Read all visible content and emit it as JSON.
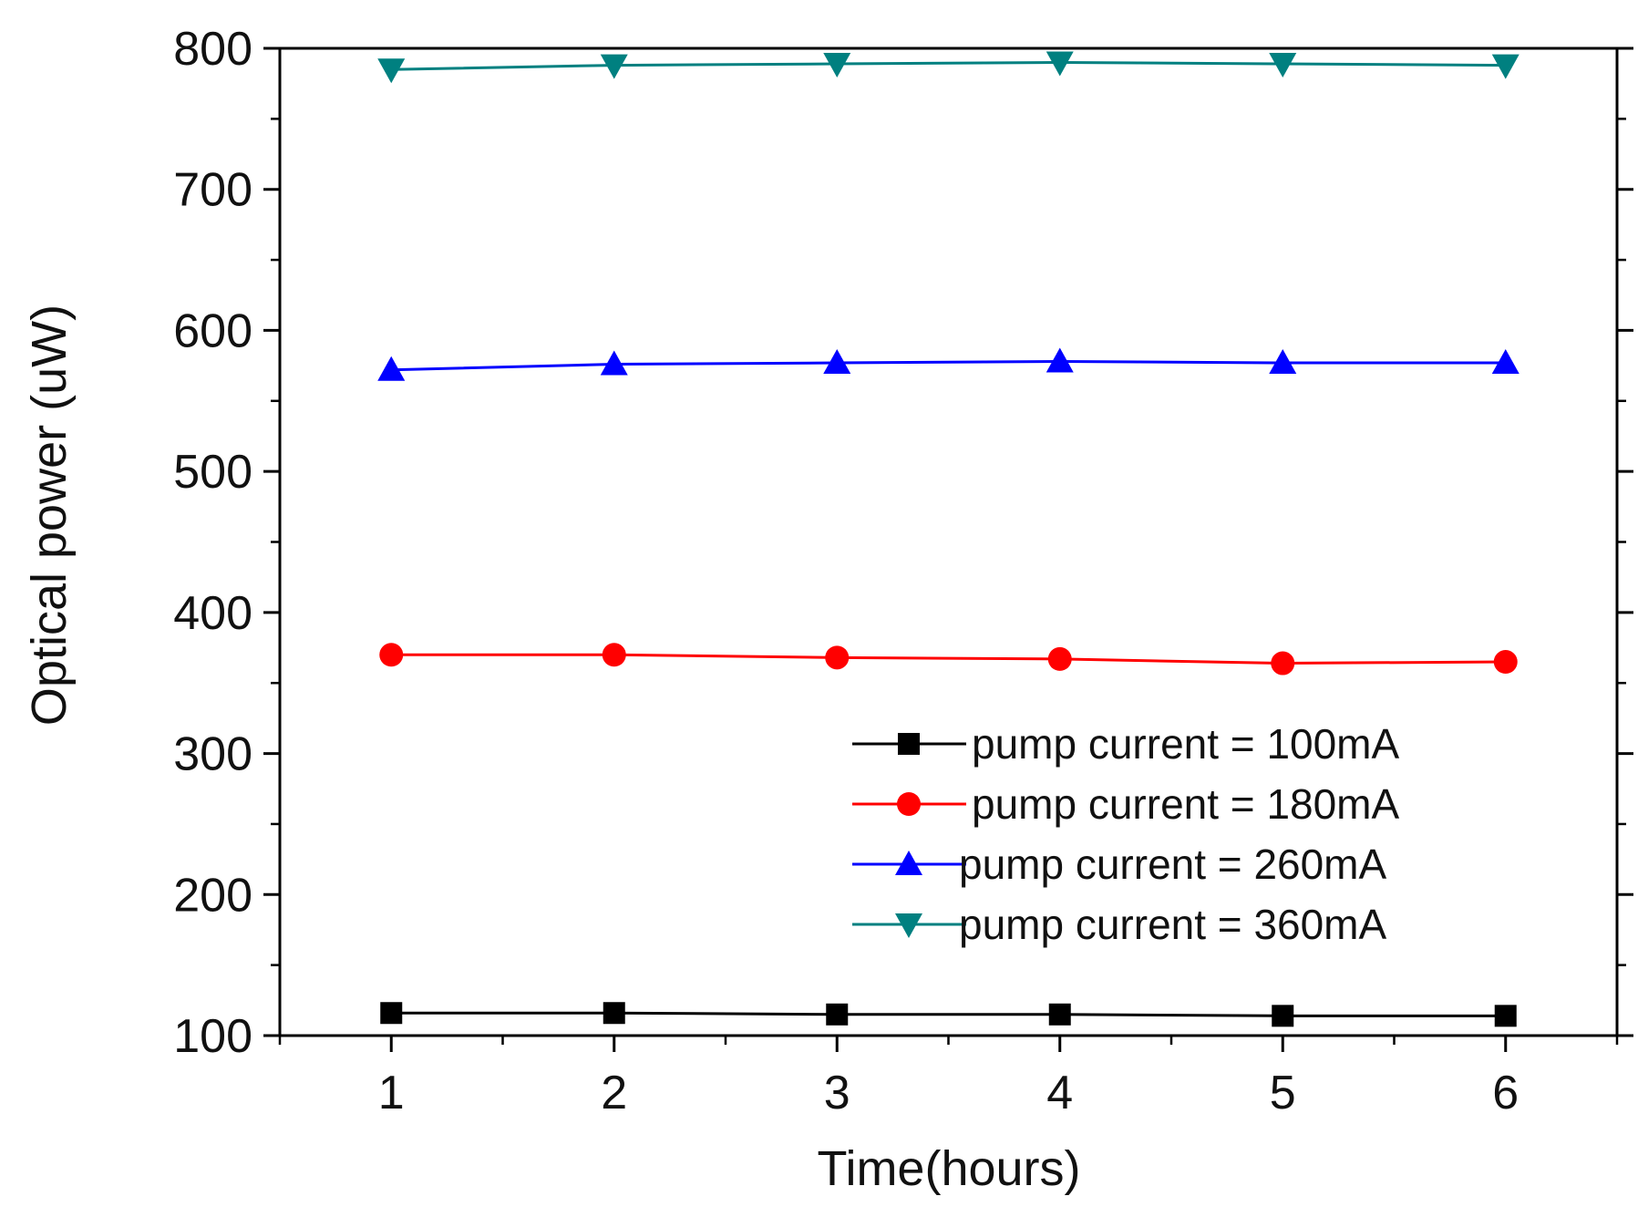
{
  "chart_data": {
    "type": "line",
    "title": "",
    "xlabel": "Time(hours)",
    "ylabel": "Optical power (uW)",
    "x": [
      1,
      2,
      3,
      4,
      5,
      6
    ],
    "xlim": [
      0.5,
      6.5
    ],
    "ylim": [
      100,
      800
    ],
    "x_ticks": [
      1,
      2,
      3,
      4,
      5,
      6
    ],
    "y_ticks": [
      100,
      200,
      300,
      400,
      500,
      600,
      700,
      800
    ],
    "grid": false,
    "legend_position": "bottom-right",
    "series": [
      {
        "name": "pump current = 100mA",
        "values": [
          116,
          116,
          115,
          115,
          114,
          114
        ],
        "color": "#000000",
        "marker": "square"
      },
      {
        "name": "pump current = 180mA",
        "values": [
          370,
          370,
          368,
          367,
          364,
          365
        ],
        "color": "#ff0000",
        "marker": "circle"
      },
      {
        "name": "pump current = 260mA",
        "values": [
          572,
          576,
          577,
          578,
          577,
          577
        ],
        "color": "#0000ff",
        "marker": "triangle-up"
      },
      {
        "name": "pump current = 360mA",
        "values": [
          785,
          788,
          789,
          790,
          789,
          788
        ],
        "color": "#008080",
        "marker": "triangle-down"
      }
    ]
  }
}
